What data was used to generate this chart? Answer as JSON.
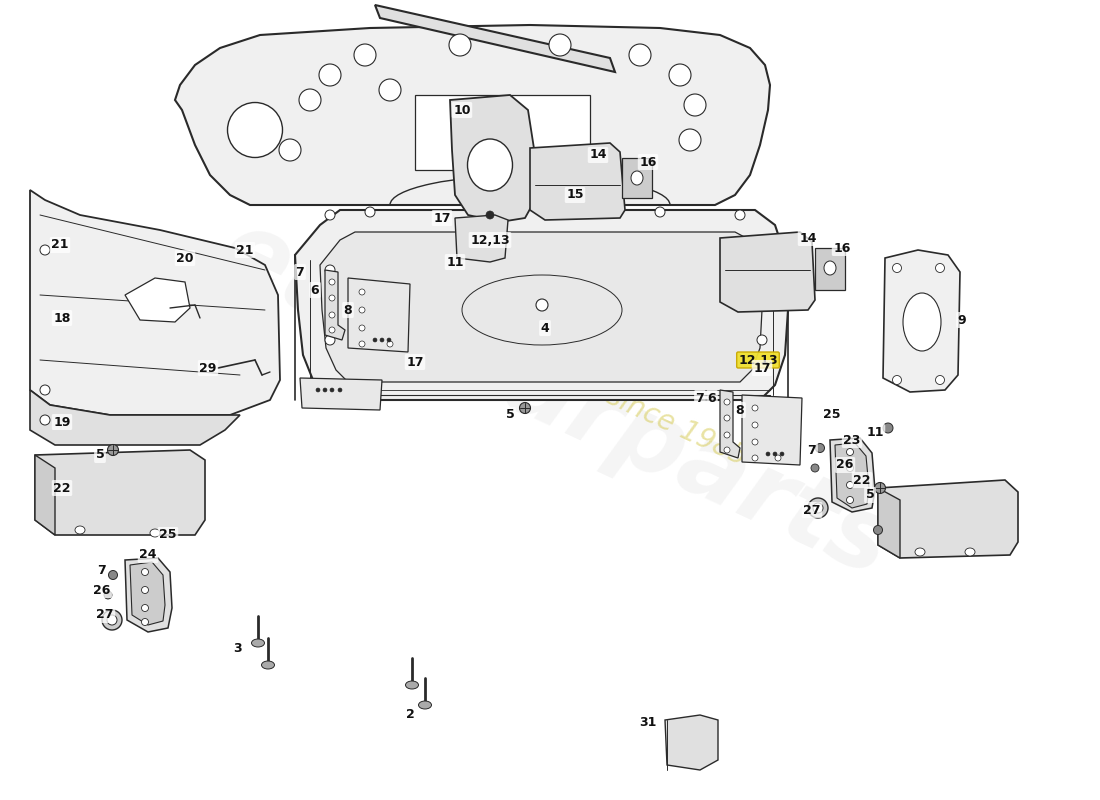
{
  "bg_color": "#ffffff",
  "line_color": "#2a2a2a",
  "fill_light": "#f0f0f0",
  "fill_mid": "#e0e0e0",
  "fill_dark": "#cccccc",
  "watermark_main": "#c8c8c8",
  "watermark_sub": "#d4c84a",
  "fig_w": 11.0,
  "fig_h": 8.0,
  "dpi": 100
}
